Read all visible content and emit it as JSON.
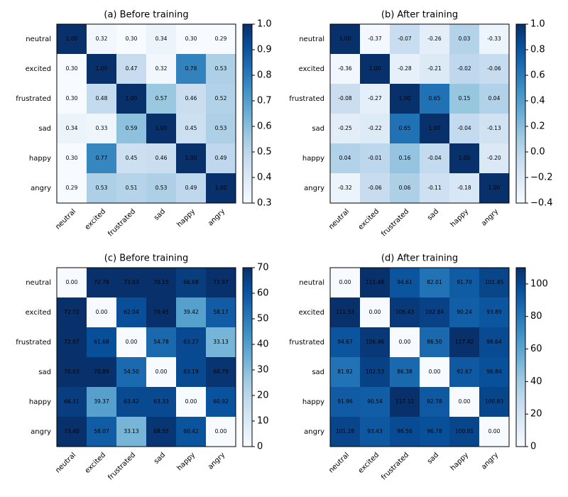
{
  "chart_data": [
    {
      "type": "heatmap",
      "title": "(a) Before training",
      "colormap": "Blues",
      "categories": [
        "neutral",
        "excited",
        "frustrated",
        "sad",
        "happy",
        "angry"
      ],
      "values": [
        [
          1.0,
          0.32,
          0.3,
          0.34,
          0.3,
          0.29
        ],
        [
          0.3,
          1.0,
          0.47,
          0.32,
          0.78,
          0.53
        ],
        [
          0.3,
          0.48,
          1.0,
          0.57,
          0.46,
          0.52
        ],
        [
          0.34,
          0.33,
          0.59,
          1.0,
          0.45,
          0.53
        ],
        [
          0.3,
          0.77,
          0.45,
          0.46,
          1.0,
          0.49
        ],
        [
          0.29,
          0.53,
          0.51,
          0.53,
          0.49,
          1.0
        ]
      ],
      "value_labels": [
        [
          "1.00",
          "0.32",
          "0.30",
          "0.34",
          "0.30",
          "0.29"
        ],
        [
          "0.30",
          "1.00",
          "0.47",
          "0.32",
          "0.78",
          "0.53"
        ],
        [
          "0.30",
          "0.48",
          "1.00",
          "0.57",
          "0.46",
          "0.52"
        ],
        [
          "0.34",
          "0.33",
          "0.59",
          "1.00",
          "0.45",
          "0.53"
        ],
        [
          "0.30",
          "0.77",
          "0.45",
          "0.46",
          "1.00",
          "0.49"
        ],
        [
          "0.29",
          "0.53",
          "0.51",
          "0.53",
          "0.49",
          "1.00"
        ]
      ],
      "clim": [
        0.3,
        1.0
      ],
      "cticks": [
        0.3,
        0.4,
        0.5,
        0.6,
        0.7,
        0.8,
        0.9,
        {
          "value": 1.0,
          "label": "1.0"
        }
      ]
    },
    {
      "type": "heatmap",
      "title": "(b) After training",
      "colormap": "Blues",
      "categories": [
        "neutral",
        "excited",
        "frustrated",
        "sad",
        "happy",
        "angry"
      ],
      "values": [
        [
          1.0,
          -0.37,
          -0.07,
          -0.26,
          0.03,
          -0.33
        ],
        [
          -0.36,
          1.0,
          -0.28,
          -0.21,
          -0.02,
          -0.06
        ],
        [
          -0.08,
          -0.27,
          1.0,
          0.65,
          0.15,
          0.04
        ],
        [
          -0.25,
          -0.22,
          0.65,
          1.0,
          -0.04,
          -0.13
        ],
        [
          0.04,
          -0.01,
          0.16,
          -0.04,
          1.0,
          -0.2
        ],
        [
          -0.32,
          -0.06,
          0.06,
          -0.11,
          -0.18,
          1.0
        ]
      ],
      "value_labels": [
        [
          "1.00",
          "-0.37",
          "-0.07",
          "-0.26",
          "0.03",
          "-0.33"
        ],
        [
          "-0.36",
          "1.00",
          "-0.28",
          "-0.21",
          "-0.02",
          "-0.06"
        ],
        [
          "-0.08",
          "-0.27",
          "1.00",
          "0.65",
          "0.15",
          "0.04"
        ],
        [
          "-0.25",
          "-0.22",
          "0.65",
          "1.00",
          "-0.04",
          "-0.13"
        ],
        [
          "0.04",
          "-0.01",
          "0.16",
          "-0.04",
          "1.00",
          "-0.20"
        ],
        [
          "-0.32",
          "-0.06",
          "0.06",
          "-0.11",
          "-0.18",
          "1.00"
        ]
      ],
      "clim": [
        -0.4,
        1.0
      ],
      "cticks": [
        {
          "value": -0.4,
          "label": "−0.4"
        },
        {
          "value": -0.2,
          "label": "−0.2"
        },
        {
          "value": 0.0,
          "label": "0.0"
        },
        0.2,
        0.4,
        0.6,
        0.8,
        {
          "value": 1.0,
          "label": "1.0"
        }
      ]
    },
    {
      "type": "heatmap",
      "title": "(c) Before training",
      "colormap": "Blues",
      "categories": [
        "neutral",
        "excited",
        "frustrated",
        "sad",
        "happy",
        "angry"
      ],
      "values": [
        [
          0.0,
          72.78,
          73.03,
          70.15,
          66.68,
          73.97
        ],
        [
          72.72,
          0.0,
          62.04,
          70.45,
          39.42,
          58.17
        ],
        [
          72.97,
          61.68,
          0.0,
          54.78,
          63.27,
          33.13
        ],
        [
          70.03,
          70.89,
          54.5,
          0.0,
          63.19,
          68.79
        ],
        [
          66.31,
          39.37,
          63.42,
          63.33,
          0.0,
          60.92
        ],
        [
          73.4,
          58.07,
          33.13,
          68.55,
          60.42,
          0.0
        ]
      ],
      "value_labels": [
        [
          "0.00",
          "72.78",
          "73.03",
          "70.15",
          "66.68",
          "73.97"
        ],
        [
          "72.72",
          "0.00",
          "62.04",
          "70.45",
          "39.42",
          "58.17"
        ],
        [
          "72.97",
          "61.68",
          "0.00",
          "54.78",
          "63.27",
          "33.13"
        ],
        [
          "70.03",
          "70.89",
          "54.50",
          "0.00",
          "63.19",
          "68.79"
        ],
        [
          "66.31",
          "39.37",
          "63.42",
          "63.33",
          "0.00",
          "60.92"
        ],
        [
          "73.40",
          "58.07",
          "33.13",
          "68.55",
          "60.42",
          "0.00"
        ]
      ],
      "clim": [
        0,
        70
      ],
      "cticks": [
        0,
        10,
        20,
        30,
        40,
        50,
        60,
        70
      ]
    },
    {
      "type": "heatmap",
      "title": "(d) After training",
      "colormap": "Blues",
      "categories": [
        "neutral",
        "excited",
        "frustrated",
        "sad",
        "happy",
        "angry"
      ],
      "values": [
        [
          0.0,
          111.48,
          94.61,
          82.01,
          91.7,
          101.45
        ],
        [
          111.53,
          0.0,
          106.43,
          102.84,
          90.24,
          93.89
        ],
        [
          94.67,
          106.46,
          0.0,
          86.5,
          117.42,
          98.64
        ],
        [
          81.92,
          102.53,
          86.38,
          0.0,
          92.67,
          96.84
        ],
        [
          91.96,
          90.54,
          117.12,
          92.78,
          0.0,
          100.83
        ],
        [
          101.28,
          93.43,
          98.56,
          96.78,
          100.81,
          0.0
        ]
      ],
      "value_labels": [
        [
          "0.00",
          "111.48",
          "94.61",
          "82.01",
          "91.70",
          "101.45"
        ],
        [
          "111.53",
          "0.00",
          "106.43",
          "102.84",
          "90.24",
          "93.89"
        ],
        [
          "94.67",
          "106.46",
          "0.00",
          "86.50",
          "117.42",
          "98.64"
        ],
        [
          "81.92",
          "102.53",
          "86.38",
          "0.00",
          "92.67",
          "96.84"
        ],
        [
          "91.96",
          "90.54",
          "117.12",
          "92.78",
          "0.00",
          "100.83"
        ],
        [
          "101.28",
          "93.43",
          "98.56",
          "96.78",
          "100.81",
          "0.00"
        ]
      ],
      "clim": [
        0,
        110
      ],
      "cticks": [
        0,
        20,
        40,
        60,
        80,
        100
      ]
    }
  ]
}
